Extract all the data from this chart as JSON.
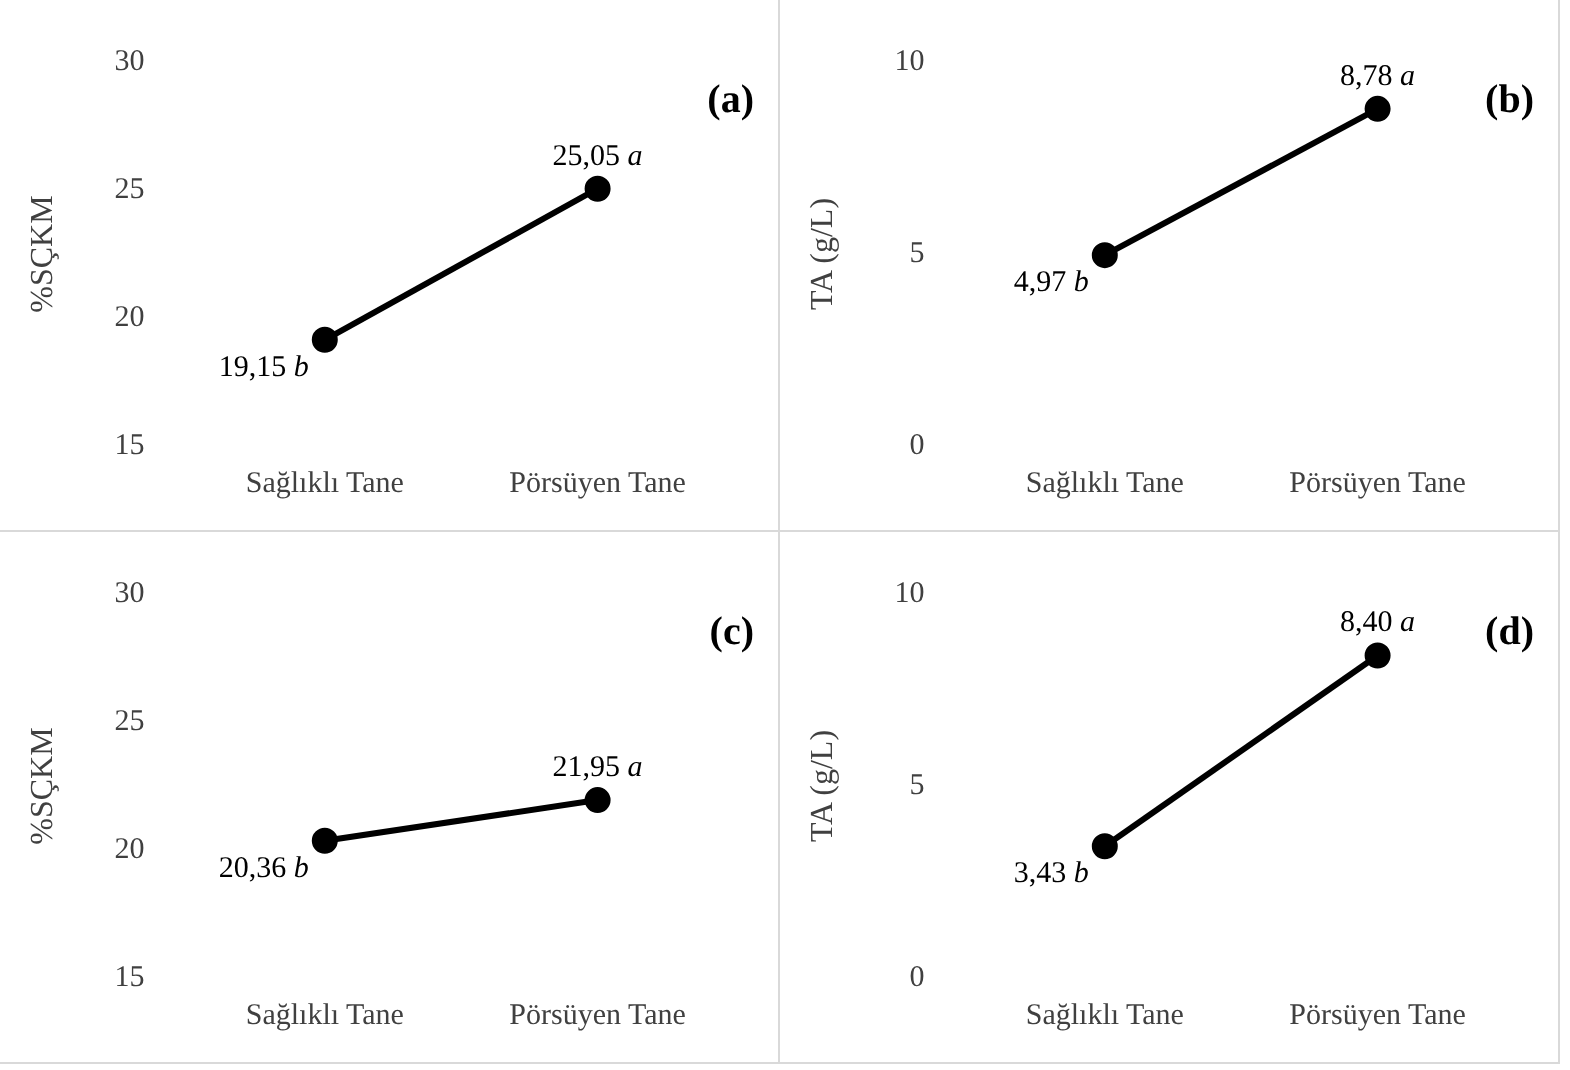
{
  "chart_data": [
    {
      "type": "line",
      "title": "(a)",
      "ylabel": "%SÇKM",
      "categories": [
        "Sağlıklı Tane",
        "Pörsüyen Tane"
      ],
      "values": [
        19.15,
        25.05
      ],
      "value_labels": [
        "19,15 b",
        "25,05 a"
      ],
      "color": "#000000",
      "marker": "circle",
      "ylim": [
        15,
        30
      ],
      "yticks": [
        15,
        20,
        25,
        30
      ],
      "grid": false,
      "legend": false
    },
    {
      "type": "line",
      "title": "(b)",
      "ylabel": "TA (g/L)",
      "categories": [
        "Sağlıklı Tane",
        "Pörsüyen Tane"
      ],
      "values": [
        4.97,
        8.78
      ],
      "value_labels": [
        "4,97 b",
        "8,78 a"
      ],
      "color": "#000000",
      "marker": "circle",
      "ylim": [
        0,
        10
      ],
      "yticks": [
        0,
        5,
        10
      ],
      "grid": false,
      "legend": false
    },
    {
      "type": "line",
      "title": "(c)",
      "ylabel": "%SÇKM",
      "categories": [
        "Sağlıklı Tane",
        "Pörsüyen Tane"
      ],
      "values": [
        20.36,
        21.95
      ],
      "value_labels": [
        "20,36 b",
        "21,95 a"
      ],
      "color": "#000000",
      "marker": "circle",
      "ylim": [
        15,
        30
      ],
      "yticks": [
        15,
        20,
        25,
        30
      ],
      "grid": false,
      "legend": false
    },
    {
      "type": "line",
      "title": "(d)",
      "ylabel": "TA (g/L)",
      "categories": [
        "Sağlıklı Tane",
        "Pörsüyen Tane"
      ],
      "values": [
        3.43,
        8.4
      ],
      "value_labels": [
        "3,43 b",
        "8,40 a"
      ],
      "color": "#000000",
      "marker": "circle",
      "ylim": [
        0,
        10
      ],
      "yticks": [
        0,
        5,
        10
      ],
      "grid": false,
      "legend": false
    }
  ]
}
